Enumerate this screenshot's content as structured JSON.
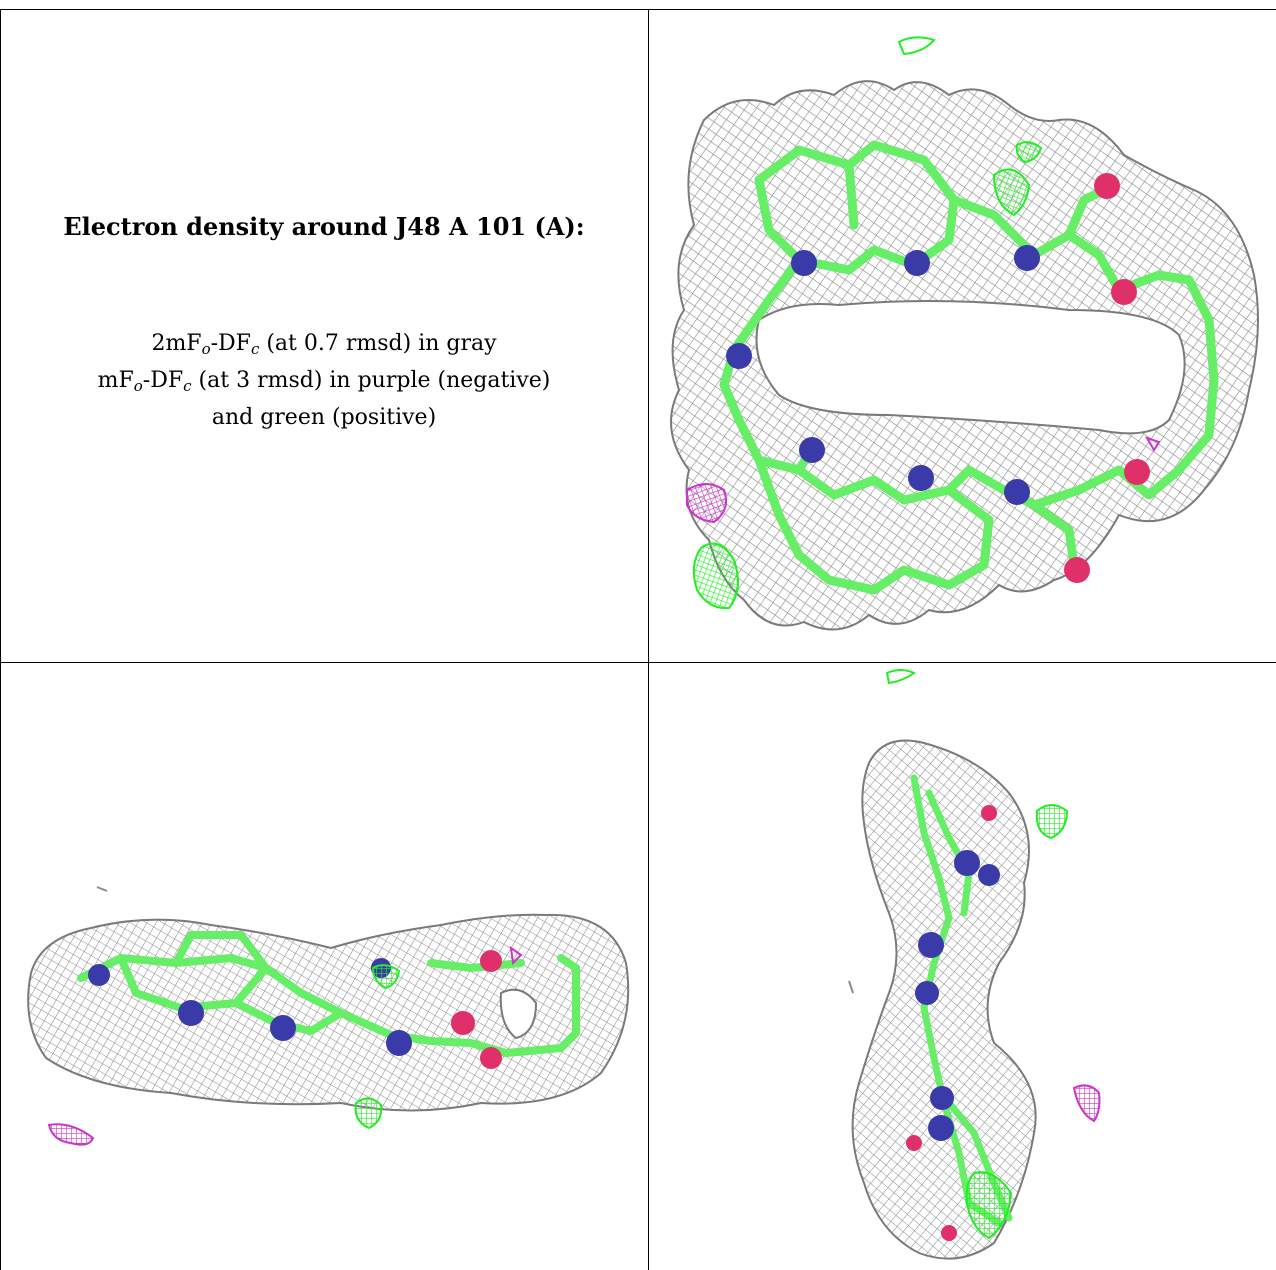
{
  "caption": {
    "title": "Electron density around J48 A 101 (A):",
    "line1_a": "2mF",
    "line1_sub1": "o",
    "line1_b": "-DF",
    "line1_sub2": "c",
    "line1_c": " (at 0.7 rmsd) in gray",
    "line2_a": "mF",
    "line2_sub1": "o",
    "line2_b": "-DF",
    "line2_sub2": "c",
    "line2_c": " (at 3 rmsd) in purple (negative)",
    "line3": "and green (positive)"
  },
  "colors": {
    "mesh_2fofc": "#9a9a9a",
    "positive_diff": "#22ee22",
    "negative_diff": "#cc33cc",
    "carbon_stick": "#66ee66",
    "nitrogen": "#3a3aa8",
    "oxygen": "#e0306a"
  },
  "views": [
    {
      "id": "top-right",
      "orientation": "face-on macrocycle"
    },
    {
      "id": "bottom-left",
      "orientation": "edge-on horizontal"
    },
    {
      "id": "bottom-right",
      "orientation": "edge-on vertical"
    }
  ]
}
